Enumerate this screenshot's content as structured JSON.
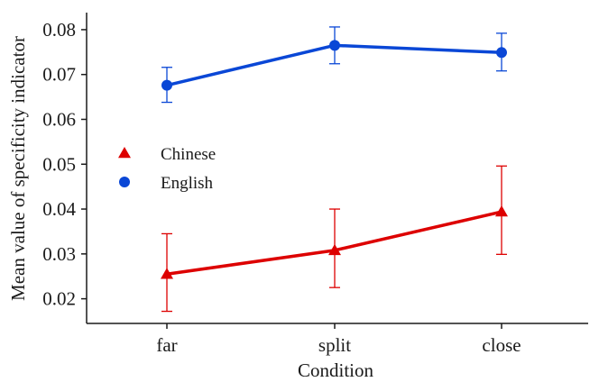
{
  "chart_data": {
    "type": "line",
    "title": "",
    "xlabel": "Condition",
    "ylabel": "Mean value of specificity indicator",
    "categories": [
      "far",
      "split",
      "close"
    ],
    "yticks": [
      "0.02",
      "0.03",
      "0.04",
      "0.05",
      "0.06",
      "0.07",
      "0.08"
    ],
    "ylim": [
      0.0145,
      0.0838
    ],
    "grid": false,
    "legend_position": "left",
    "series": [
      {
        "name": "Chinese",
        "marker": "triangle",
        "color": "#dd0000",
        "values": [
          0.0255,
          0.0308,
          0.0394
        ],
        "err_low": [
          0.0172,
          0.0225,
          0.0299
        ],
        "err_high": [
          0.0345,
          0.04,
          0.0496
        ]
      },
      {
        "name": "English",
        "marker": "circle",
        "color": "#0a47d6",
        "values": [
          0.0676,
          0.0765,
          0.0749
        ],
        "err_low": [
          0.0638,
          0.0724,
          0.0708
        ],
        "err_high": [
          0.0716,
          0.0806,
          0.0792
        ]
      }
    ]
  }
}
